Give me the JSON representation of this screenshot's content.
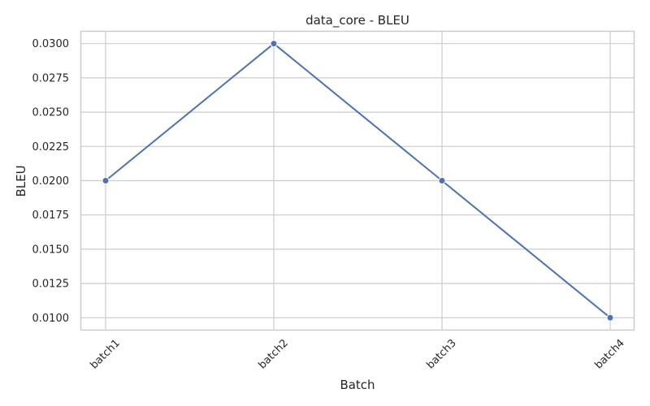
{
  "chart_data": {
    "type": "line",
    "title": "data_core - BLEU",
    "xlabel": "Batch",
    "ylabel": "BLEU",
    "categories": [
      "batch1",
      "batch2",
      "batch3",
      "batch4"
    ],
    "values": [
      0.02,
      0.03,
      0.02,
      0.01
    ],
    "ylim": [
      0.0091,
      0.0309
    ],
    "yticks": [
      "0.0100",
      "0.0125",
      "0.0150",
      "0.0175",
      "0.0200",
      "0.0225",
      "0.0250",
      "0.0275",
      "0.0300"
    ],
    "grid": true,
    "markers": true,
    "line_color": "#4c72b0",
    "grid_color": "#cccccc",
    "frame_color": "#cccccc"
  }
}
